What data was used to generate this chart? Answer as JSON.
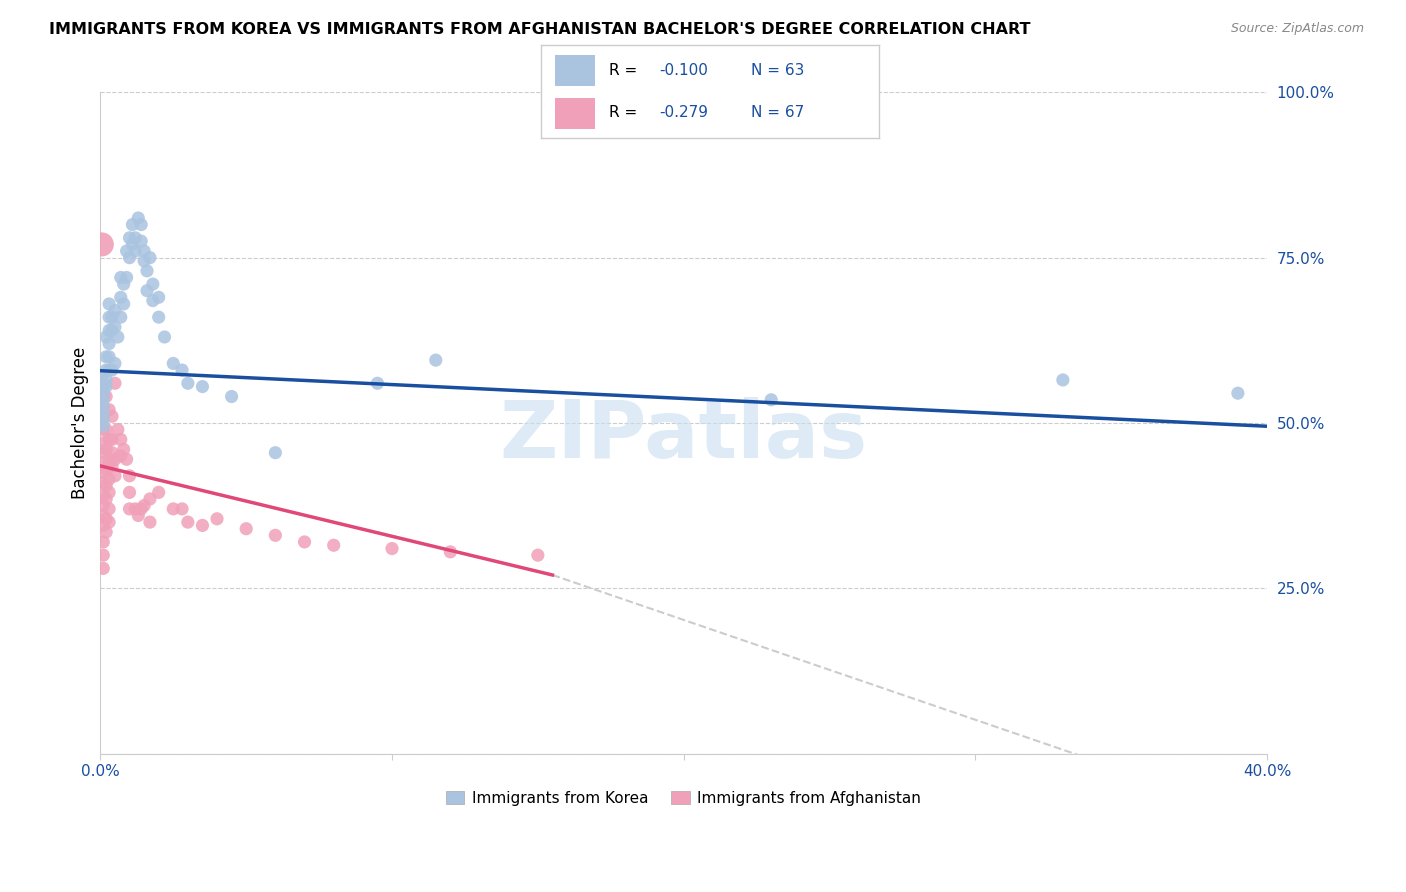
{
  "title": "IMMIGRANTS FROM KOREA VS IMMIGRANTS FROM AFGHANISTAN BACHELOR'S DEGREE CORRELATION CHART",
  "source": "Source: ZipAtlas.com",
  "ylabel": "Bachelor's Degree",
  "korea_R": -0.1,
  "korea_N": 63,
  "afghanistan_R": -0.279,
  "afghanistan_N": 67,
  "korea_color": "#aac4e0",
  "korea_line_color": "#1a4fa0",
  "afghanistan_color": "#f0a0b8",
  "afghanistan_line_color": "#e04878",
  "xmin": 0.0,
  "xmax": 0.4,
  "ymin": 0.0,
  "ymax": 1.0,
  "korea_trend": [
    0.0,
    0.579,
    0.4,
    0.495
  ],
  "afghanistan_trend_solid": [
    0.0,
    0.435,
    0.155,
    0.27
  ],
  "afghanistan_trend_dash": [
    0.155,
    0.27,
    0.4,
    -0.1
  ],
  "korea_points": [
    [
      0.0005,
      0.565
    ],
    [
      0.001,
      0.555
    ],
    [
      0.001,
      0.545
    ],
    [
      0.001,
      0.535
    ],
    [
      0.001,
      0.525
    ],
    [
      0.001,
      0.515
    ],
    [
      0.001,
      0.505
    ],
    [
      0.001,
      0.495
    ],
    [
      0.002,
      0.63
    ],
    [
      0.002,
      0.6
    ],
    [
      0.002,
      0.58
    ],
    [
      0.002,
      0.565
    ],
    [
      0.002,
      0.555
    ],
    [
      0.003,
      0.68
    ],
    [
      0.003,
      0.66
    ],
    [
      0.003,
      0.64
    ],
    [
      0.003,
      0.62
    ],
    [
      0.003,
      0.6
    ],
    [
      0.003,
      0.58
    ],
    [
      0.004,
      0.66
    ],
    [
      0.004,
      0.64
    ],
    [
      0.004,
      0.58
    ],
    [
      0.005,
      0.67
    ],
    [
      0.005,
      0.645
    ],
    [
      0.005,
      0.59
    ],
    [
      0.006,
      0.63
    ],
    [
      0.007,
      0.72
    ],
    [
      0.007,
      0.69
    ],
    [
      0.007,
      0.66
    ],
    [
      0.008,
      0.71
    ],
    [
      0.008,
      0.68
    ],
    [
      0.009,
      0.76
    ],
    [
      0.009,
      0.72
    ],
    [
      0.01,
      0.78
    ],
    [
      0.01,
      0.75
    ],
    [
      0.011,
      0.8
    ],
    [
      0.011,
      0.77
    ],
    [
      0.012,
      0.78
    ],
    [
      0.012,
      0.76
    ],
    [
      0.013,
      0.81
    ],
    [
      0.014,
      0.8
    ],
    [
      0.014,
      0.775
    ],
    [
      0.015,
      0.76
    ],
    [
      0.015,
      0.745
    ],
    [
      0.016,
      0.73
    ],
    [
      0.016,
      0.7
    ],
    [
      0.017,
      0.75
    ],
    [
      0.018,
      0.71
    ],
    [
      0.018,
      0.685
    ],
    [
      0.02,
      0.69
    ],
    [
      0.02,
      0.66
    ],
    [
      0.022,
      0.63
    ],
    [
      0.025,
      0.59
    ],
    [
      0.028,
      0.58
    ],
    [
      0.03,
      0.56
    ],
    [
      0.035,
      0.555
    ],
    [
      0.045,
      0.54
    ],
    [
      0.06,
      0.455
    ],
    [
      0.095,
      0.56
    ],
    [
      0.115,
      0.595
    ],
    [
      0.23,
      0.535
    ],
    [
      0.33,
      0.565
    ],
    [
      0.39,
      0.545
    ]
  ],
  "afghanistan_points": [
    [
      0.0005,
      0.77
    ],
    [
      0.001,
      0.555
    ],
    [
      0.001,
      0.54
    ],
    [
      0.001,
      0.525
    ],
    [
      0.001,
      0.51
    ],
    [
      0.001,
      0.49
    ],
    [
      0.001,
      0.47
    ],
    [
      0.001,
      0.455
    ],
    [
      0.001,
      0.44
    ],
    [
      0.001,
      0.425
    ],
    [
      0.001,
      0.41
    ],
    [
      0.001,
      0.39
    ],
    [
      0.001,
      0.375
    ],
    [
      0.001,
      0.36
    ],
    [
      0.001,
      0.345
    ],
    [
      0.001,
      0.32
    ],
    [
      0.001,
      0.3
    ],
    [
      0.001,
      0.28
    ],
    [
      0.002,
      0.54
    ],
    [
      0.002,
      0.49
    ],
    [
      0.002,
      0.46
    ],
    [
      0.002,
      0.43
    ],
    [
      0.002,
      0.405
    ],
    [
      0.002,
      0.385
    ],
    [
      0.002,
      0.355
    ],
    [
      0.002,
      0.335
    ],
    [
      0.003,
      0.52
    ],
    [
      0.003,
      0.475
    ],
    [
      0.003,
      0.44
    ],
    [
      0.003,
      0.415
    ],
    [
      0.003,
      0.395
    ],
    [
      0.003,
      0.37
    ],
    [
      0.003,
      0.35
    ],
    [
      0.004,
      0.51
    ],
    [
      0.004,
      0.475
    ],
    [
      0.004,
      0.455
    ],
    [
      0.004,
      0.435
    ],
    [
      0.005,
      0.56
    ],
    [
      0.005,
      0.445
    ],
    [
      0.005,
      0.42
    ],
    [
      0.006,
      0.49
    ],
    [
      0.007,
      0.475
    ],
    [
      0.007,
      0.45
    ],
    [
      0.008,
      0.46
    ],
    [
      0.009,
      0.445
    ],
    [
      0.01,
      0.42
    ],
    [
      0.01,
      0.395
    ],
    [
      0.01,
      0.37
    ],
    [
      0.012,
      0.37
    ],
    [
      0.013,
      0.36
    ],
    [
      0.014,
      0.37
    ],
    [
      0.015,
      0.375
    ],
    [
      0.017,
      0.385
    ],
    [
      0.017,
      0.35
    ],
    [
      0.02,
      0.395
    ],
    [
      0.025,
      0.37
    ],
    [
      0.028,
      0.37
    ],
    [
      0.03,
      0.35
    ],
    [
      0.035,
      0.345
    ],
    [
      0.04,
      0.355
    ],
    [
      0.05,
      0.34
    ],
    [
      0.06,
      0.33
    ],
    [
      0.07,
      0.32
    ],
    [
      0.08,
      0.315
    ],
    [
      0.1,
      0.31
    ],
    [
      0.12,
      0.305
    ],
    [
      0.15,
      0.3
    ]
  ],
  "afghanistan_large_dot_size": 300,
  "korea_dot_size": 90,
  "afghanistan_dot_size": 90,
  "legend_R_color": "#1a4fa0",
  "legend_N_color": "#1a4fa0",
  "watermark_color": "#c8dff0",
  "watermark_text": "ZIPatlas",
  "grid_color": "#cccccc",
  "spine_color": "#cccccc",
  "tick_label_color": "#1a4fa0"
}
